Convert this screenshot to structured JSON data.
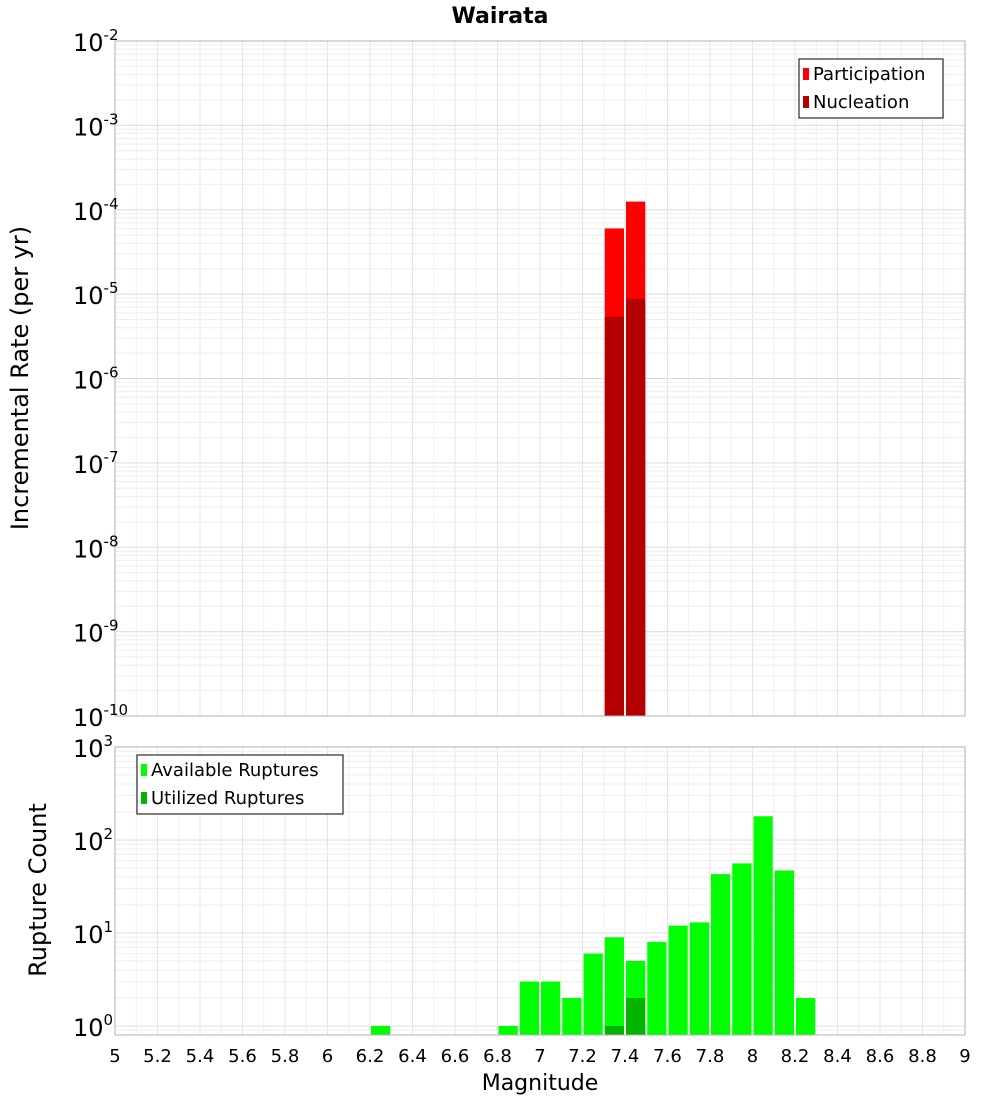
{
  "chart_data": [
    {
      "type": "bar",
      "title": "Wairata",
      "xlabel": "",
      "ylabel": "Incremental Rate (per yr)",
      "yscale": "log",
      "ylim": [
        1e-10,
        0.01
      ],
      "xlim": [
        5,
        9
      ],
      "bin_width": 0.1,
      "y_ticks": [
        {
          "base": "10",
          "exp": "-10"
        },
        {
          "base": "10",
          "exp": "-9"
        },
        {
          "base": "10",
          "exp": "-8"
        },
        {
          "base": "10",
          "exp": "-7"
        },
        {
          "base": "10",
          "exp": "-6"
        },
        {
          "base": "10",
          "exp": "-5"
        },
        {
          "base": "10",
          "exp": "-4"
        },
        {
          "base": "10",
          "exp": "-3"
        },
        {
          "base": "10",
          "exp": "-2"
        }
      ],
      "legend": [
        {
          "label": "Participation",
          "color": "#ff0000"
        },
        {
          "label": "Nucleation",
          "color": "#b40000"
        }
      ],
      "legend_position": "top-right",
      "series": [
        {
          "name": "Participation",
          "color": "#ff0000",
          "x": [
            7.35,
            7.45
          ],
          "values": [
            6e-05,
            0.000125
          ]
        },
        {
          "name": "Nucleation",
          "color": "#b40000",
          "x": [
            7.35,
            7.45
          ],
          "values": [
            5.4e-06,
            8.8e-06
          ]
        }
      ]
    },
    {
      "type": "bar",
      "title": "",
      "xlabel": "Magnitude",
      "ylabel": "Rupture Count",
      "yscale": "log",
      "ylim": [
        0.8,
        1000
      ],
      "xlim": [
        5,
        9
      ],
      "bin_width": 0.1,
      "y_ticks": [
        {
          "base": "10",
          "exp": "0"
        },
        {
          "base": "10",
          "exp": "1"
        },
        {
          "base": "10",
          "exp": "2"
        },
        {
          "base": "10",
          "exp": "3"
        }
      ],
      "x_ticks": [
        "5",
        "5.2",
        "5.4",
        "5.6",
        "5.8",
        "6",
        "6.2",
        "6.4",
        "6.6",
        "6.8",
        "7",
        "7.2",
        "7.4",
        "7.6",
        "7.8",
        "8",
        "8.2",
        "8.4",
        "8.6",
        "8.8",
        "9"
      ],
      "legend": [
        {
          "label": "Available Ruptures",
          "color": "#00ff00"
        },
        {
          "label": "Utilized Ruptures",
          "color": "#00b400"
        }
      ],
      "legend_position": "top-left",
      "series": [
        {
          "name": "Available Ruptures",
          "color": "#00ff00",
          "x": [
            6.25,
            6.85,
            6.95,
            7.05,
            7.15,
            7.25,
            7.35,
            7.45,
            7.55,
            7.65,
            7.75,
            7.85,
            7.95,
            8.05,
            8.15,
            8.25
          ],
          "values": [
            1,
            1,
            3,
            3,
            2,
            6,
            9,
            5,
            8,
            12,
            13,
            43,
            56,
            180,
            47,
            2
          ]
        },
        {
          "name": "Utilized Ruptures",
          "color": "#00b400",
          "x": [
            7.35,
            7.45
          ],
          "values": [
            1,
            2
          ]
        }
      ]
    }
  ]
}
